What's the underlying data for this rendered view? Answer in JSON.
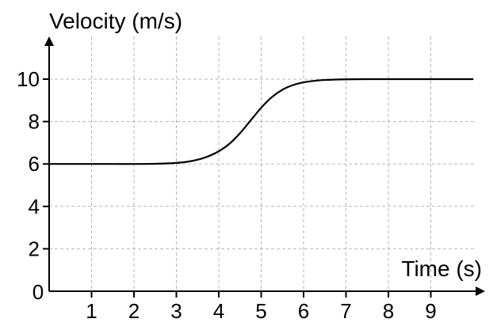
{
  "chart_data": {
    "type": "line",
    "xlabel": "Time (s)",
    "ylabel": "Velocity (m/s)",
    "xlim": [
      0,
      10
    ],
    "ylim": [
      0,
      10
    ],
    "x_ticks": [
      1,
      2,
      3,
      4,
      5,
      6,
      7,
      8,
      9
    ],
    "y_ticks": [
      2,
      4,
      6,
      8,
      10
    ],
    "origin_label": "0",
    "grid": true,
    "series": [
      {
        "color": "#000000",
        "x": [
          0,
          0.5,
          1,
          1.5,
          2,
          2.5,
          3,
          3.25,
          3.5,
          3.75,
          4,
          4.25,
          4.5,
          4.75,
          5,
          5.25,
          5.5,
          5.75,
          6,
          6.25,
          6.5,
          7,
          7.5,
          8,
          8.5,
          9,
          9.5,
          10
        ],
        "y": [
          6.0,
          6.0,
          6.0,
          6.0,
          6.0,
          6.01,
          6.05,
          6.1,
          6.2,
          6.36,
          6.6,
          6.95,
          7.45,
          8.05,
          8.65,
          9.15,
          9.5,
          9.72,
          9.85,
          9.92,
          9.96,
          9.99,
          10.0,
          10.0,
          10.0,
          10.0,
          10.0,
          10.0
        ]
      }
    ]
  }
}
